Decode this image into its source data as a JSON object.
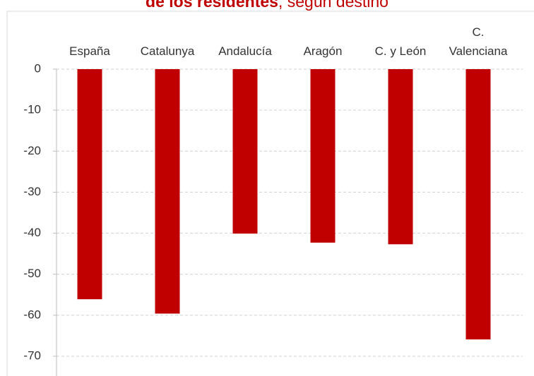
{
  "chart_data": {
    "type": "bar",
    "title_bold": "de los residentes",
    "title_rest": ", según destino",
    "categories": [
      "España",
      "Catalunya",
      "Andalucía",
      "Aragón",
      "C. y León",
      "C. Valenciana"
    ],
    "values": [
      -56.1,
      -59.6,
      -40.1,
      -42.3,
      -42.7,
      -65.9
    ],
    "color": "#c00000",
    "ylim": [
      -70,
      0
    ],
    "yticks": [
      0,
      -10,
      -20,
      -30,
      -40,
      -50,
      -60,
      -70
    ],
    "grid": true
  }
}
